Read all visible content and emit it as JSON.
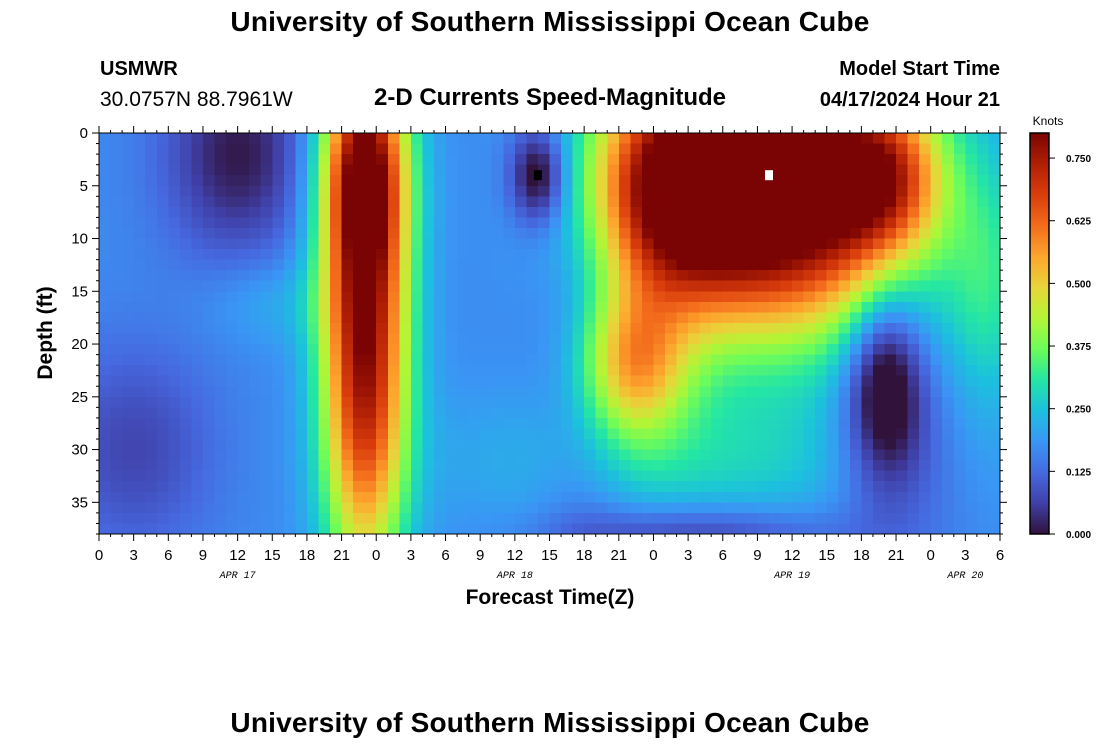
{
  "page": {
    "top_title": "University of Southern Mississippi Ocean Cube",
    "bottom_title": "University of Southern Mississippi Ocean Cube",
    "station_name": "USMWR",
    "station_coords": "30.0757N  88.7961W",
    "plot_title": "2-D Currents Speed-Magnitude",
    "model_start_label": "Model Start Time",
    "model_start_value": "04/17/2024 Hour 21"
  },
  "colors": {
    "background": "#ffffff",
    "axis": "#000000",
    "colormap_stops": [
      "#30123b",
      "#4040a8",
      "#4669e0",
      "#3a96f5",
      "#1cc0de",
      "#24e6a4",
      "#6cfc5a",
      "#b4f535",
      "#e8d43a",
      "#fda52d",
      "#f36c1c",
      "#d93d0c",
      "#b01f04",
      "#7a0403"
    ]
  },
  "chart_data": {
    "type": "heatmap",
    "xlabel": "Forecast Time(Z)",
    "ylabel": "Depth (ft)",
    "colorbar_title": "Knots",
    "x_range": [
      0,
      78
    ],
    "y_range": [
      0,
      38
    ],
    "y_inverted": true,
    "value_range": [
      0,
      0.8
    ],
    "x_tick_values": [
      0,
      3,
      6,
      9,
      12,
      15,
      18,
      21,
      24,
      27,
      30,
      33,
      36,
      39,
      42,
      45,
      48,
      51,
      54,
      57,
      60,
      63,
      66,
      69,
      72,
      75,
      78
    ],
    "x_tick_labels": [
      "0",
      "3",
      "6",
      "9",
      "12",
      "15",
      "18",
      "21",
      "0",
      "3",
      "6",
      "9",
      "12",
      "15",
      "18",
      "21",
      "0",
      "3",
      "6",
      "9",
      "12",
      "15",
      "18",
      "21",
      "0",
      "3",
      "6"
    ],
    "date_labels": [
      {
        "x": 12,
        "text": "APR 17"
      },
      {
        "x": 36,
        "text": "APR 18"
      },
      {
        "x": 60,
        "text": "APR 19"
      },
      {
        "x": 75,
        "text": "APR 20"
      }
    ],
    "y_ticks": [
      0,
      5,
      10,
      15,
      20,
      25,
      30,
      35
    ],
    "colorbar_ticks": [
      {
        "value": 0.0,
        "label": "0.000"
      },
      {
        "value": 0.125,
        "label": "0.125"
      },
      {
        "value": 0.25,
        "label": "0.250"
      },
      {
        "value": 0.375,
        "label": "0.375"
      },
      {
        "value": 0.5,
        "label": "0.500"
      },
      {
        "value": 0.625,
        "label": "0.625"
      },
      {
        "value": 0.75,
        "label": "0.750"
      }
    ],
    "grid_cols": 78,
    "grid_rows": 38,
    "base_value": 0.17,
    "features": [
      {
        "x": 12,
        "y": 2,
        "sx": 4.5,
        "sy": 7,
        "a": -0.16
      },
      {
        "x": 3,
        "y": 30,
        "sx": 5,
        "sy": 7,
        "a": -0.1
      },
      {
        "x": 23,
        "y": 20,
        "sx": 2.6,
        "sy": 15,
        "a": 0.62
      },
      {
        "x": 23,
        "y": 3,
        "sx": 2.6,
        "sy": 7,
        "a": 0.42
      },
      {
        "x": 38,
        "y": 4,
        "sx": 1.7,
        "sy": 3.2,
        "a": -0.22
      },
      {
        "x": 59,
        "y": 6,
        "sx": 8,
        "sy": 9,
        "a": 0.75
      },
      {
        "x": 49,
        "y": 5,
        "sx": 5,
        "sy": 8,
        "a": 0.45
      },
      {
        "x": 46,
        "y": 22,
        "sx": 3.5,
        "sy": 5,
        "a": 0.35
      },
      {
        "x": 68,
        "y": 4,
        "sx": 3.5,
        "sy": 5,
        "a": 0.3
      },
      {
        "x": 68,
        "y": 23,
        "sx": 2.3,
        "sy": 6,
        "a": -0.24
      },
      {
        "x": 69,
        "y": 31,
        "sx": 4,
        "sy": 6,
        "a": -0.1
      },
      {
        "x": 52,
        "y": 31,
        "sx": 14,
        "sy": 5,
        "a": 0.1
      },
      {
        "x": 77,
        "y": 15,
        "sx": 2.5,
        "sy": 8,
        "a": 0.12
      },
      {
        "x": 42,
        "y": 21,
        "sx": 3,
        "sy": 15,
        "a": -0.08
      },
      {
        "x": 52,
        "y": 38,
        "sx": 8,
        "sy": 2,
        "a": -0.12
      },
      {
        "x": 15,
        "y": 16,
        "sx": 4,
        "sy": 3,
        "a": 0.05
      }
    ],
    "markers": [
      {
        "x": 38,
        "y": 4,
        "value": 0.0
      },
      {
        "x": 58,
        "y": 4,
        "value": 0.8
      }
    ]
  }
}
